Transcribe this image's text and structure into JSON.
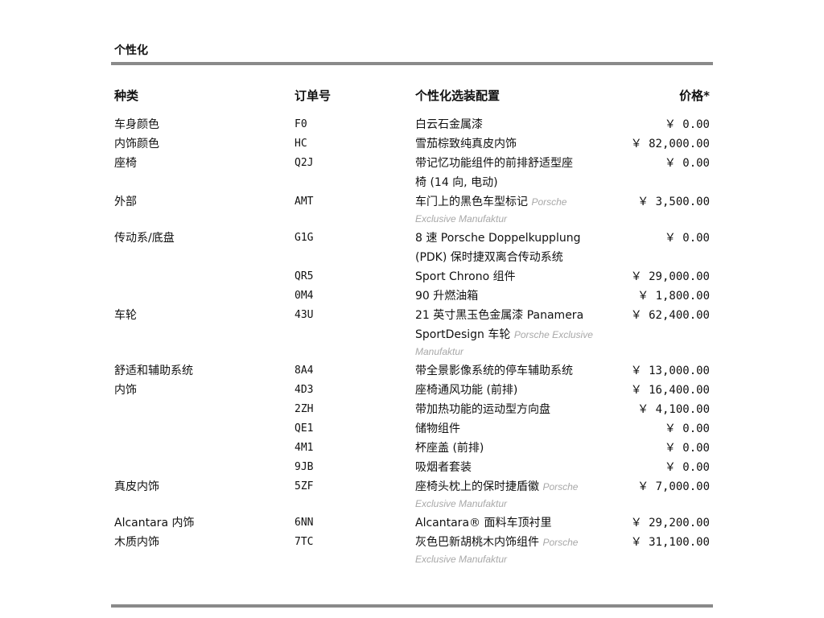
{
  "section_title": "个性化",
  "headers": {
    "category": "种类",
    "order_no": "订单号",
    "config": "个性化选装配置",
    "price": "价格*"
  },
  "rows": [
    {
      "category": "车身颜色",
      "code": "F0",
      "price": "￥ 0.00",
      "lines": [
        {
          "t": "白云石金属漆",
          "n": ""
        }
      ]
    },
    {
      "category": "内饰颜色",
      "code": "HC",
      "price": "￥ 82,000.00",
      "lines": [
        {
          "t": "雪茄棕致纯真皮内饰",
          "n": ""
        }
      ]
    },
    {
      "category": "座椅",
      "code": "Q2J",
      "price": "￥ 0.00",
      "lines": [
        {
          "t": "带记忆功能组件的前排舒适型座",
          "n": ""
        },
        {
          "t": "椅 (14 向, 电动)",
          "n": ""
        }
      ]
    },
    {
      "category": "外部",
      "code": "AMT",
      "price": "￥ 3,500.00",
      "lines": [
        {
          "t": "车门上的黑色车型标记 ",
          "n": "Porsche"
        },
        {
          "t": "",
          "n": "Exclusive Manufaktur"
        }
      ]
    },
    {
      "category": "传动系/底盘",
      "code": "G1G",
      "price": "￥ 0.00",
      "lines": [
        {
          "t": "8 速 Porsche Doppelkupplung",
          "n": ""
        },
        {
          "t": "(PDK) 保时捷双离合传动系统",
          "n": ""
        }
      ]
    },
    {
      "category": "",
      "code": "QR5",
      "price": "￥ 29,000.00",
      "lines": [
        {
          "t": "Sport Chrono 组件",
          "n": ""
        }
      ]
    },
    {
      "category": "",
      "code": "0M4",
      "price": "￥ 1,800.00",
      "lines": [
        {
          "t": "90 升燃油箱",
          "n": ""
        }
      ]
    },
    {
      "category": "车轮",
      "code": "43U",
      "price": "￥ 62,400.00",
      "lines": [
        {
          "t": "21 英寸黑玉色金属漆 Panamera",
          "n": ""
        },
        {
          "t": "SportDesign 车轮 ",
          "n": "Porsche Exclusive"
        },
        {
          "t": "",
          "n": "Manufaktur"
        }
      ]
    },
    {
      "category": "舒适和辅助系统",
      "code": "8A4",
      "price": "￥ 13,000.00",
      "lines": [
        {
          "t": "带全景影像系统的停车辅助系统",
          "n": ""
        }
      ]
    },
    {
      "category": "内饰",
      "code": "4D3",
      "price": "￥ 16,400.00",
      "lines": [
        {
          "t": "座椅通风功能 (前排)",
          "n": ""
        }
      ]
    },
    {
      "category": "",
      "code": "2ZH",
      "price": "￥ 4,100.00",
      "lines": [
        {
          "t": "带加热功能的运动型方向盘",
          "n": ""
        }
      ]
    },
    {
      "category": "",
      "code": "QE1",
      "price": "￥ 0.00",
      "lines": [
        {
          "t": "储物组件",
          "n": ""
        }
      ]
    },
    {
      "category": "",
      "code": "4M1",
      "price": "￥ 0.00",
      "lines": [
        {
          "t": "杯座盖 (前排)",
          "n": ""
        }
      ]
    },
    {
      "category": "",
      "code": "9JB",
      "price": "￥ 0.00",
      "lines": [
        {
          "t": "吸烟者套装",
          "n": ""
        }
      ]
    },
    {
      "category": "真皮内饰",
      "code": "5ZF",
      "price": "￥ 7,000.00",
      "lines": [
        {
          "t": "座椅头枕上的保时捷盾徽 ",
          "n": "Porsche"
        },
        {
          "t": "",
          "n": "Exclusive Manufaktur"
        }
      ]
    },
    {
      "category": "Alcantara 内饰",
      "code": "6NN",
      "price": "￥ 29,200.00",
      "lines": [
        {
          "t": "Alcantara® 面料车顶衬里",
          "n": ""
        }
      ]
    },
    {
      "category": "木质内饰",
      "code": "7TC",
      "price": "￥ 31,100.00",
      "lines": [
        {
          "t": "灰色巴新胡桃木内饰组件 ",
          "n": "Porsche"
        },
        {
          "t": "",
          "n": "Exclusive Manufaktur"
        }
      ]
    }
  ]
}
